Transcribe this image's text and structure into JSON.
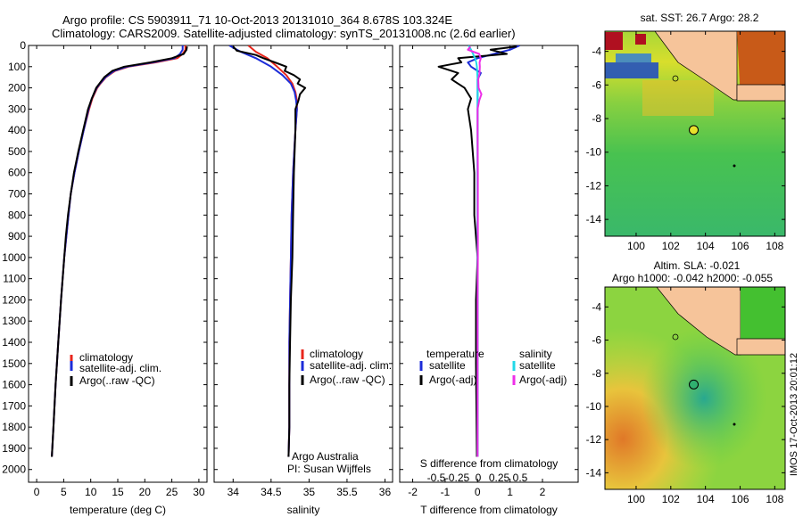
{
  "header": {
    "title_line1": "Argo profile: CS 5903911_71 10-Oct-2013 20131010_364 8.678S 103.324E",
    "title_line2": "Climatology: CARS2009. Satellite-adjusted climatology: synTS_20131008.nc (2.6d earlier)"
  },
  "colors": {
    "climatology": "#e8261c",
    "satellite_clim": "#1c2cd8",
    "argo": "#000000",
    "salinity_satellite": "#22d8e8",
    "salinity_argo": "#ee2ee8"
  },
  "depth_axis": {
    "ticks": [
      0,
      100,
      200,
      300,
      400,
      500,
      600,
      700,
      800,
      900,
      1000,
      1100,
      1200,
      1300,
      1400,
      1500,
      1600,
      1700,
      1800,
      1900,
      2000
    ],
    "range": [
      0,
      2060
    ],
    "reversed": true
  },
  "chart_data": [
    {
      "type": "line",
      "id": "temperature",
      "xlabel": "temperature (deg C)",
      "xlim": [
        -1.5,
        31.5
      ],
      "xticks": [
        0,
        5,
        10,
        15,
        20,
        25,
        30
      ],
      "legend": [
        "climatology",
        "satellite-adj. clim.",
        "Argo(..raw -QC)"
      ],
      "legend_placement": "bottom-center",
      "series": [
        {
          "name": "climatology",
          "color_key": "climatology",
          "depth": [
            0,
            20,
            40,
            60,
            80,
            100,
            120,
            150,
            180,
            200,
            250,
            300,
            400,
            500,
            600,
            700,
            800,
            900,
            1000,
            1200,
            1400,
            1600,
            1800,
            1940
          ],
          "values": [
            27.5,
            27.5,
            27.0,
            26.0,
            22.0,
            17.0,
            14.5,
            12.8,
            11.8,
            11.2,
            10.3,
            9.7,
            8.7,
            7.8,
            7.0,
            6.3,
            5.9,
            5.5,
            5.1,
            4.5,
            4.0,
            3.5,
            3.1,
            2.8
          ]
        },
        {
          "name": "satellite-adj. clim.",
          "color_key": "satellite_clim",
          "depth": [
            0,
            20,
            40,
            60,
            80,
            100,
            120,
            150,
            180,
            200,
            250,
            300,
            400,
            500,
            600,
            700,
            800,
            900,
            1000,
            1200,
            1400,
            1600,
            1800,
            1940
          ],
          "values": [
            27.0,
            27.0,
            26.5,
            25.5,
            21.5,
            16.7,
            14.3,
            12.7,
            11.7,
            11.1,
            10.2,
            9.6,
            8.7,
            7.8,
            7.0,
            6.3,
            5.9,
            5.5,
            5.1,
            4.5,
            4.0,
            3.5,
            3.1,
            2.8
          ]
        },
        {
          "name": "Argo(..raw -QC)",
          "color_key": "argo",
          "depth": [
            5,
            20,
            40,
            60,
            80,
            100,
            120,
            150,
            180,
            200,
            250,
            300,
            400,
            500,
            600,
            700,
            800,
            900,
            1000,
            1200,
            1400,
            1600,
            1800,
            1940
          ],
          "values": [
            27.8,
            27.7,
            27.2,
            25.0,
            21.0,
            16.2,
            14.0,
            12.5,
            11.6,
            11.0,
            10.2,
            9.5,
            8.6,
            7.7,
            6.9,
            6.3,
            5.8,
            5.4,
            5.1,
            4.5,
            4.0,
            3.5,
            3.1,
            2.8
          ]
        }
      ]
    },
    {
      "type": "line",
      "id": "salinity",
      "xlabel": "salinity",
      "xlim": [
        33.75,
        36.1
      ],
      "xticks": [
        34,
        34.5,
        35,
        35.5,
        36
      ],
      "xticklabels": [
        "34",
        "34.5",
        "35",
        "35.5",
        "36"
      ],
      "legend": [
        "climatology",
        "satellite-adj. clim.",
        "Argo(..raw -QC)"
      ],
      "legend_placement": "bottom-center",
      "annotations": [
        "Argo Australia",
        "PI: Susan Wijffels"
      ],
      "series": [
        {
          "name": "climatology",
          "color_key": "climatology",
          "depth": [
            0,
            30,
            60,
            100,
            140,
            180,
            220,
            260,
            300,
            400,
            600,
            800,
            1000,
            1200,
            1400,
            1600,
            1800,
            1940
          ],
          "values": [
            34.2,
            34.3,
            34.45,
            34.58,
            34.7,
            34.78,
            34.82,
            34.84,
            34.84,
            34.82,
            34.79,
            34.77,
            34.76,
            34.75,
            34.74,
            34.74,
            34.74,
            34.73
          ]
        },
        {
          "name": "satellite-adj. clim.",
          "color_key": "satellite_clim",
          "depth": [
            0,
            30,
            60,
            100,
            140,
            180,
            220,
            260,
            300,
            400,
            600,
            800,
            1000,
            1200,
            1400,
            1600,
            1800,
            1940
          ],
          "values": [
            33.95,
            34.1,
            34.3,
            34.5,
            34.65,
            34.76,
            34.81,
            34.83,
            34.84,
            34.82,
            34.79,
            34.77,
            34.76,
            34.75,
            34.74,
            34.74,
            34.74,
            34.73
          ]
        },
        {
          "name": "Argo(..raw -QC)",
          "color_key": "argo",
          "depth": [
            5,
            25,
            45,
            60,
            80,
            100,
            120,
            140,
            160,
            180,
            200,
            230,
            260,
            300,
            400,
            600,
            800,
            1000,
            1200,
            1400,
            1600,
            1800,
            1940
          ],
          "values": [
            34.0,
            34.05,
            34.3,
            34.4,
            34.55,
            34.7,
            34.68,
            34.8,
            34.88,
            34.85,
            34.95,
            34.88,
            34.86,
            34.82,
            34.82,
            34.8,
            34.79,
            34.78,
            34.76,
            34.75,
            34.74,
            34.74,
            34.73
          ]
        }
      ]
    },
    {
      "type": "line",
      "id": "difference",
      "xlabel": "T difference from climatology",
      "xlabel_top": "S difference from climatology",
      "xlim": [
        -2.4,
        3.1
      ],
      "xticks": [
        -2,
        -1,
        0,
        1,
        2
      ],
      "xticks_top": [
        -0.5,
        -0.25,
        0,
        0.25,
        0.5
      ],
      "xticklabels_top": [
        "-0.5",
        "-0.25",
        "0",
        "0.25",
        "0.5"
      ],
      "legend_headers": [
        "temperature",
        "salinity"
      ],
      "legend_temperature": [
        "satellite",
        "Argo(-adj)"
      ],
      "legend_salinity": [
        "satellite",
        "Argo(-adj)"
      ],
      "series": [
        {
          "name": "temperature satellite",
          "color_key": "satellite_clim",
          "depth": [
            0,
            20,
            40,
            60,
            80,
            100,
            130,
            160,
            200,
            250,
            300,
            400,
            600,
            800,
            1000,
            1200,
            1500,
            1800,
            1940
          ],
          "values": [
            1.3,
            1.0,
            0.5,
            0.0,
            -0.3,
            -0.2,
            0.1,
            0.0,
            0.0,
            0.0,
            0.0,
            0.0,
            0.0,
            0.0,
            0.0,
            0.0,
            0.0,
            0.0,
            0.0
          ]
        },
        {
          "name": "temperature Argo(-adj)",
          "color_key": "argo",
          "depth": [
            5,
            20,
            40,
            60,
            80,
            100,
            130,
            160,
            200,
            250,
            300,
            400,
            600,
            800,
            1000,
            1200,
            1500,
            1800,
            1940
          ],
          "values": [
            1.2,
            0.4,
            0.9,
            -0.6,
            -0.5,
            -1.2,
            -0.6,
            -0.8,
            -0.4,
            -0.2,
            -0.3,
            -0.2,
            -0.1,
            -0.1,
            0.0,
            -0.05,
            -0.05,
            -0.03,
            -0.02
          ]
        },
        {
          "name": "salinity satellite",
          "color_key": "salinity_satellite",
          "depth": [
            0,
            20,
            40,
            60,
            80,
            100,
            130,
            160,
            200,
            250,
            300,
            400,
            600,
            800,
            1000,
            1200,
            1500,
            1800,
            1940
          ],
          "values": [
            -0.28,
            -0.2,
            -0.14,
            -0.08,
            -0.04,
            -0.02,
            -0.01,
            0.0,
            0.0,
            0.0,
            0.0,
            0.0,
            0.0,
            0.0,
            0.0,
            0.0,
            0.0,
            0.0,
            0.0
          ]
        },
        {
          "name": "salinity Argo(-adj)",
          "color_key": "salinity_argo",
          "depth": [
            5,
            20,
            40,
            60,
            80,
            100,
            130,
            160,
            200,
            230,
            260,
            300,
            400,
            600,
            800,
            1000,
            1200,
            1500,
            1800,
            1940
          ],
          "values": [
            -0.22,
            -0.3,
            0.05,
            0.1,
            0.06,
            0.07,
            0.06,
            0.02,
            0.03,
            0.12,
            0.05,
            0.0,
            0.0,
            0.01,
            0.01,
            0.01,
            0.0,
            0.0,
            0.0,
            0.0
          ]
        }
      ]
    },
    {
      "type": "heatmap",
      "id": "sst_map",
      "title": "sat. SST: 26.7  Argo: 28.2",
      "xticks": [
        100,
        102,
        104,
        106,
        108
      ],
      "yticks": [
        -4,
        -6,
        -8,
        -10,
        -12,
        -14
      ],
      "xlim": [
        98.2,
        108.6
      ],
      "ylim": [
        -15,
        -2.8
      ],
      "marker": {
        "lon": 103.324,
        "lat": -8.678
      }
    },
    {
      "type": "heatmap",
      "id": "sla_map",
      "title": "Altim. SLA: -0.021",
      "subtitle": "Argo h1000: -0.042 h2000: -0.055",
      "xticks": [
        100,
        102,
        104,
        106,
        108
      ],
      "yticks": [
        -4,
        -6,
        -8,
        -10,
        -12,
        -14
      ],
      "xlim": [
        98.2,
        108.6
      ],
      "ylim": [
        -15,
        -2.8
      ],
      "marker": {
        "lon": 103.324,
        "lat": -8.678
      }
    }
  ],
  "footer": {
    "side_label": "IMOS 17-Oct-2013 20:01:12"
  }
}
